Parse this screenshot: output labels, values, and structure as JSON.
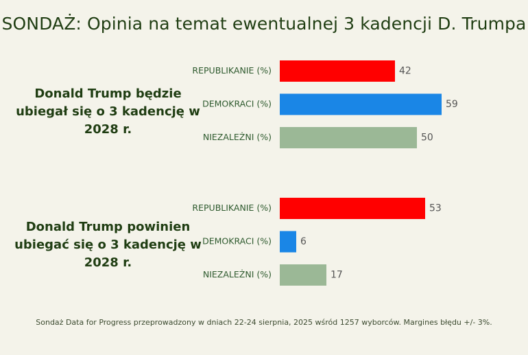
{
  "chart_data": {
    "type": "bar",
    "orientation": "horizontal",
    "title": "SONDAŻ: Opinia na temat ewentualnej 3 kadencji D. Trumpa",
    "categories": [
      "REPUBLIKANIE (%)",
      "DEMOKRACI (%)",
      "NIEZALEŻNI (%)"
    ],
    "groups": [
      {
        "name": "Donald Trump będzie ubiegał się o 3 kadencję w 2028 r.",
        "values": [
          42,
          59,
          50
        ]
      },
      {
        "name": "Donald Trump powinien ubiegać się o 3 kadencję w 2028 r.",
        "values": [
          53,
          6,
          17
        ]
      }
    ],
    "colors": [
      "#ff0000",
      "#1a86e6",
      "#9bb896"
    ],
    "xlim": [
      0,
      100
    ],
    "grid": false,
    "footnote": "Sondaż Data for Progress przeprowadzony w dniach 22-24 sierpnia, 2025 wśród 1257 wyborców. Margines błędu +/- 3%."
  }
}
